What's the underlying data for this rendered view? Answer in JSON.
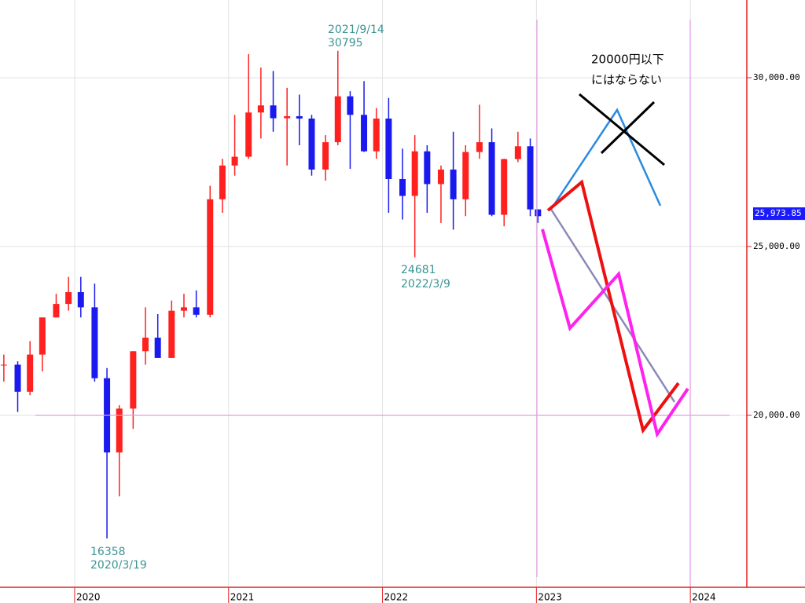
{
  "chart_data": {
    "type": "candlestick",
    "x": [
      2019.54,
      2019.63,
      2019.71,
      2019.79,
      2019.88,
      2019.96,
      2020.04,
      2020.13,
      2020.21,
      2020.29,
      2020.38,
      2020.46,
      2020.54,
      2020.63,
      2020.71,
      2020.79,
      2020.88,
      2020.96,
      2021.04,
      2021.13,
      2021.21,
      2021.29,
      2021.38,
      2021.46,
      2021.54,
      2021.63,
      2021.71,
      2021.79,
      2021.88,
      2021.96,
      2022.04,
      2022.13,
      2022.21,
      2022.29,
      2022.38,
      2022.46,
      2022.54,
      2022.63,
      2022.71,
      2022.79,
      2022.88,
      2022.96,
      2023.01
    ],
    "open": [
      21500,
      21500,
      20700,
      21800,
      22900,
      23300,
      23650,
      23200,
      21100,
      18900,
      20200,
      21900,
      22300,
      21700,
      23100,
      23200,
      22980,
      26400,
      27400,
      27660,
      28970,
      29180,
      28800,
      28860,
      28790,
      27280,
      28090,
      29450,
      28900,
      27820,
      28790,
      27000,
      26500,
      27820,
      26850,
      27280,
      26400,
      27800,
      28090,
      25940,
      27590,
      27970,
      26100
    ],
    "high": [
      21800,
      21600,
      22200,
      22900,
      23600,
      24100,
      24100,
      23900,
      21400,
      20300,
      21900,
      23200,
      23000,
      23400,
      23600,
      23700,
      26800,
      27600,
      28900,
      30700,
      30300,
      30200,
      29700,
      29500,
      28900,
      28300,
      30795,
      29600,
      29900,
      29100,
      29400,
      27900,
      28300,
      28000,
      27400,
      28400,
      28000,
      29200,
      28500,
      27600,
      28400,
      28200,
      26100
    ],
    "low": [
      21000,
      20100,
      20600,
      21300,
      22900,
      23100,
      22900,
      21000,
      16358,
      17600,
      19600,
      21500,
      21700,
      21700,
      22900,
      22900,
      22900,
      26000,
      27100,
      27600,
      28200,
      28400,
      27400,
      28000,
      27100,
      26950,
      28000,
      27300,
      27800,
      27600,
      26000,
      25800,
      24681,
      26000,
      25700,
      25500,
      25900,
      27600,
      25900,
      25600,
      27500,
      25900,
      25700
    ],
    "close": [
      21500,
      20700,
      21800,
      22900,
      23300,
      23650,
      23200,
      21100,
      18900,
      20200,
      21900,
      22300,
      21700,
      23100,
      23200,
      22980,
      26400,
      27400,
      27660,
      28970,
      29180,
      28800,
      28860,
      28790,
      27280,
      28090,
      29450,
      28900,
      27820,
      28790,
      27000,
      26500,
      27820,
      26850,
      27280,
      26400,
      27800,
      28090,
      25940,
      27590,
      27970,
      26100,
      25900
    ],
    "up_color": "#ff2020",
    "down_color": "#1a1aee",
    "xlim": [
      2019.515,
      2024.367
    ],
    "xticks": [
      2020,
      2021,
      2022,
      2023,
      2024
    ],
    "ylim": [
      14907,
      32302
    ],
    "yticks": [
      {
        "value": 30000,
        "label": "30,000.00"
      },
      {
        "value": 25000,
        "label": "25,000.00"
      },
      {
        "value": 20000,
        "label": "20,000.00"
      }
    ],
    "grid": true,
    "last_price": {
      "value": 25973.85,
      "label": "25,973.85"
    },
    "annotations": [
      {
        "lines": [
          "2021/9/14",
          "30795"
        ]
      },
      {
        "lines": [
          "24681",
          "2022/3/9"
        ]
      },
      {
        "lines": [
          "16358",
          "2020/3/19"
        ]
      },
      {
        "lines": [
          "20000円以下",
          "にはならない"
        ]
      }
    ]
  }
}
